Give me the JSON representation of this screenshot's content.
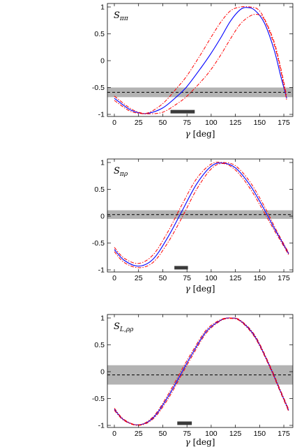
{
  "chart_data": [
    {
      "type": "line",
      "panel_label": "S",
      "panel_sub": "ππ",
      "xlabel_var": "γ",
      "xlabel_unit": "[deg]",
      "xlim": [
        0,
        180
      ],
      "ylim": [
        -1,
        1
      ],
      "x_ticks": [
        0,
        25,
        50,
        75,
        100,
        125,
        150,
        175
      ],
      "y_ticks": [
        1,
        0.5,
        0,
        -0.5,
        -1
      ],
      "y_tick_labels": [
        "1",
        "0.5",
        "0",
        "-0.5",
        "-1"
      ],
      "band": {
        "low": -0.68,
        "high": -0.5,
        "central": -0.59
      },
      "range_bar": {
        "from": 58,
        "to": 83,
        "y": -0.95
      },
      "series": [
        {
          "role": "central",
          "color": "#0000ff",
          "x": [
            0,
            15,
            25,
            35,
            50,
            65,
            75,
            90,
            100,
            110,
            120,
            130,
            137,
            145,
            155,
            165,
            172,
            178
          ],
          "y": [
            -0.7,
            -0.9,
            -0.97,
            -0.98,
            -0.88,
            -0.66,
            -0.48,
            -0.12,
            0.14,
            0.43,
            0.74,
            0.95,
            0.99,
            0.94,
            0.7,
            0.2,
            -0.3,
            -0.7
          ]
        },
        {
          "role": "upper",
          "color": "#ff0000",
          "x": [
            0,
            15,
            25,
            35,
            50,
            65,
            75,
            90,
            100,
            110,
            120,
            130,
            140,
            148,
            155,
            165,
            172,
            178
          ],
          "y": [
            -0.66,
            -0.87,
            -0.96,
            -0.97,
            -0.8,
            -0.5,
            -0.28,
            0.14,
            0.44,
            0.72,
            0.93,
            1.0,
            1.0,
            0.96,
            0.78,
            0.35,
            -0.15,
            -0.66
          ]
        },
        {
          "role": "lower",
          "color": "#ff0000",
          "x": [
            0,
            15,
            25,
            35,
            50,
            65,
            75,
            90,
            100,
            110,
            120,
            130,
            140,
            148,
            155,
            165,
            172,
            178
          ],
          "y": [
            -0.74,
            -0.93,
            -0.98,
            -0.99,
            -0.96,
            -0.8,
            -0.66,
            -0.38,
            -0.16,
            0.11,
            0.41,
            0.68,
            0.83,
            0.86,
            0.76,
            0.3,
            -0.2,
            -0.74
          ]
        }
      ]
    },
    {
      "type": "line",
      "panel_label": "S",
      "panel_sub": "πρ",
      "xlabel_var": "γ",
      "xlabel_unit": "[deg]",
      "xlim": [
        0,
        180
      ],
      "ylim": [
        -1,
        1
      ],
      "x_ticks": [
        0,
        25,
        50,
        75,
        100,
        125,
        150,
        175
      ],
      "y_ticks": [
        1,
        0.5,
        0,
        -0.5,
        -1
      ],
      "y_tick_labels": [
        "1",
        "0.5",
        "0",
        "-0.5",
        "-1"
      ],
      "band": {
        "low": -0.05,
        "high": 0.11,
        "central": 0.03
      },
      "range_bar": {
        "from": 62,
        "to": 76,
        "y": -0.96
      },
      "series": [
        {
          "role": "central",
          "color": "#0000ff",
          "x": [
            0,
            10,
            25,
            40,
            55,
            70,
            85,
            100,
            112,
            125,
            140,
            155,
            165,
            172,
            180
          ],
          "y": [
            -0.62,
            -0.82,
            -0.93,
            -0.8,
            -0.4,
            0.1,
            0.6,
            0.93,
            0.99,
            0.9,
            0.58,
            0.12,
            -0.22,
            -0.44,
            -0.7
          ]
        },
        {
          "role": "upper",
          "color": "#ff0000",
          "x": [
            0,
            10,
            25,
            40,
            55,
            70,
            85,
            100,
            112,
            125,
            140,
            155,
            165,
            172,
            180
          ],
          "y": [
            -0.58,
            -0.78,
            -0.88,
            -0.72,
            -0.3,
            0.22,
            0.7,
            0.97,
            1.0,
            0.94,
            0.64,
            0.18,
            -0.18,
            -0.42,
            -0.68
          ]
        },
        {
          "role": "lower",
          "color": "#ff0000",
          "x": [
            0,
            10,
            25,
            40,
            55,
            70,
            85,
            100,
            112,
            125,
            140,
            155,
            165,
            172,
            180
          ],
          "y": [
            -0.66,
            -0.86,
            -0.96,
            -0.86,
            -0.5,
            -0.02,
            0.5,
            0.88,
            0.98,
            0.86,
            0.52,
            0.06,
            -0.26,
            -0.47,
            -0.72
          ]
        }
      ]
    },
    {
      "type": "line",
      "panel_label": "S",
      "panel_sub": "L,ρρ",
      "xlabel_var": "γ",
      "xlabel_unit": "[deg]",
      "xlim": [
        0,
        180
      ],
      "ylim": [
        -1,
        1
      ],
      "x_ticks": [
        0,
        25,
        50,
        75,
        100,
        125,
        150,
        175
      ],
      "y_ticks": [
        1,
        0.5,
        0,
        -0.5,
        -1
      ],
      "y_tick_labels": [
        "1",
        "0.5",
        "0",
        "-0.5",
        "-1"
      ],
      "band": {
        "low": -0.24,
        "high": 0.12,
        "central": -0.06
      },
      "range_bar": {
        "from": 65,
        "to": 80,
        "y": -0.96
      },
      "series": [
        {
          "role": "central",
          "color": "#0000ff",
          "x": [
            0,
            10,
            25,
            40,
            55,
            70,
            80,
            95,
            110,
            120,
            130,
            145,
            160,
            170,
            180
          ],
          "y": [
            -0.7,
            -0.9,
            -0.99,
            -0.86,
            -0.48,
            0.0,
            0.32,
            0.75,
            0.96,
            1.0,
            0.95,
            0.66,
            0.12,
            -0.3,
            -0.72
          ]
        },
        {
          "role": "upper",
          "color": "#ff0000",
          "x": [
            0,
            10,
            25,
            40,
            55,
            70,
            80,
            95,
            110,
            120,
            130,
            145,
            160,
            170,
            180
          ],
          "y": [
            -0.68,
            -0.89,
            -0.99,
            -0.84,
            -0.44,
            0.05,
            0.36,
            0.78,
            0.97,
            1.0,
            0.96,
            0.68,
            0.14,
            -0.28,
            -0.7
          ]
        },
        {
          "role": "lower",
          "color": "#ff0000",
          "x": [
            0,
            10,
            25,
            40,
            55,
            70,
            80,
            95,
            110,
            120,
            130,
            145,
            160,
            170,
            180
          ],
          "y": [
            -0.72,
            -0.91,
            -1.0,
            -0.88,
            -0.52,
            -0.04,
            0.28,
            0.72,
            0.95,
            0.99,
            0.94,
            0.64,
            0.1,
            -0.32,
            -0.74
          ]
        }
      ]
    }
  ]
}
